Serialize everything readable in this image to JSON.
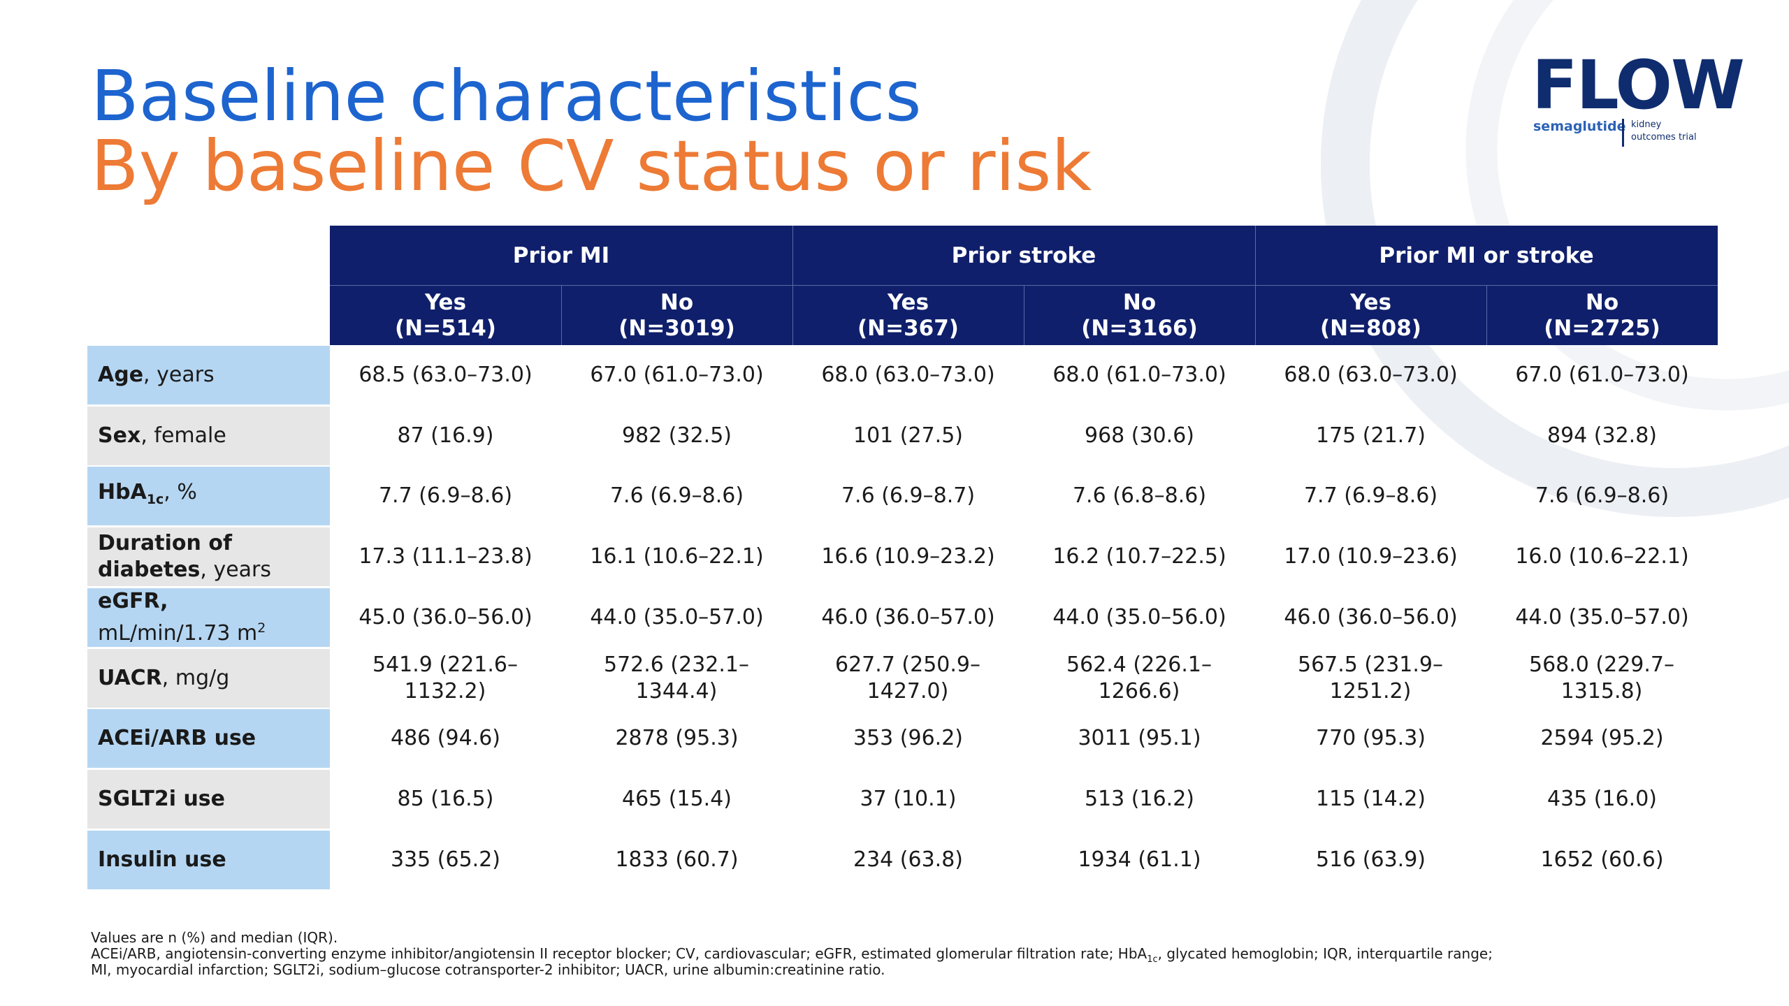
{
  "title": {
    "line1": "Baseline characteristics",
    "line2": "By baseline CV status or risk"
  },
  "logo": {
    "word": "FLOW",
    "sub": "semaglutide",
    "sub2_line1": "kidney",
    "sub2_line2": "outcomes trial"
  },
  "colors": {
    "title_blue": "#1d64cf",
    "title_orange": "#ed7a35",
    "header_navy": "#0f1f6b",
    "label_blue": "#b5d6f2",
    "label_grey": "#e6e6e6",
    "logo_navy": "#0f2d6e"
  },
  "table": {
    "groups": [
      "Prior MI",
      "Prior stroke",
      "Prior MI or stroke"
    ],
    "columns": [
      {
        "label": "Yes",
        "n": "(N=514)"
      },
      {
        "label": "No",
        "n": "(N=3019)"
      },
      {
        "label": "Yes",
        "n": "(N=367)"
      },
      {
        "label": "No",
        "n": "(N=3166)"
      },
      {
        "label": "Yes",
        "n": "(N=808)"
      },
      {
        "label": "No",
        "n": "(N=2725)"
      }
    ],
    "rows": [
      {
        "label_bold": "Age",
        "label_rest": ", years",
        "cells": [
          "68.5 (63.0–73.0)",
          "67.0 (61.0–73.0)",
          "68.0 (63.0–73.0)",
          "68.0 (61.0–73.0)",
          "68.0 (63.0–73.0)",
          "67.0 (61.0–73.0)"
        ]
      },
      {
        "label_bold": "Sex",
        "label_rest": ", female",
        "cells": [
          "87 (16.9)",
          "982 (32.5)",
          "101 (27.5)",
          "968 (30.6)",
          "175 (21.7)",
          "894 (32.8)"
        ]
      },
      {
        "label_bold": "HbA",
        "label_sub": "1c",
        "label_rest": ", %",
        "cells": [
          "7.7 (6.9–8.6)",
          "7.6 (6.9–8.6)",
          "7.6 (6.9–8.7)",
          "7.6 (6.8–8.6)",
          "7.7 (6.9–8.6)",
          "7.6 (6.9–8.6)"
        ]
      },
      {
        "label_bold": "Duration of diabetes",
        "label_rest": ", years",
        "cells": [
          "17.3 (11.1–23.8)",
          "16.1 (10.6–22.1)",
          "16.6 (10.9–23.2)",
          "16.2 (10.7–22.5)",
          "17.0 (10.9–23.6)",
          "16.0 (10.6–22.1)"
        ]
      },
      {
        "label_bold": "eGFR,",
        "label_rest": "mL/min/1.73 m",
        "label_sup": "2",
        "cells": [
          "45.0 (36.0–56.0)",
          "44.0 (35.0–57.0)",
          "46.0 (36.0–57.0)",
          "44.0 (35.0–56.0)",
          "46.0 (36.0–56.0)",
          "44.0 (35.0–57.0)"
        ]
      },
      {
        "label_bold": "UACR",
        "label_rest": ", mg/g",
        "cells": [
          "541.9 (221.6–1132.2)",
          "572.6 (232.1–1344.4)",
          "627.7 (250.9–1427.0)",
          "562.4 (226.1–1266.6)",
          "567.5 (231.9–1251.2)",
          "568.0 (229.7–1315.8)"
        ]
      },
      {
        "label_bold": "ACEi/ARB use",
        "label_rest": "",
        "cells": [
          "486 (94.6)",
          "2878 (95.3)",
          "353 (96.2)",
          "3011 (95.1)",
          "770 (95.3)",
          "2594 (95.2)"
        ]
      },
      {
        "label_bold": "SGLT2i use",
        "label_rest": "",
        "cells": [
          "85 (16.5)",
          "465 (15.4)",
          "37 (10.1)",
          "513 (16.2)",
          "115 (14.2)",
          "435 (16.0)"
        ]
      },
      {
        "label_bold": "Insulin use",
        "label_rest": "",
        "cells": [
          "335 (65.2)",
          "1833 (60.7)",
          "234 (63.8)",
          "1934 (61.1)",
          "516 (63.9)",
          "1652 (60.6)"
        ]
      }
    ]
  },
  "footnote": {
    "line1": "Values are n (%) and median (IQR).",
    "line2_a": "ACEi/ARB, angiotensin-converting enzyme inhibitor/angiotensin II receptor blocker; CV, cardiovascular; eGFR, estimated glomerular filtration rate; HbA",
    "line2_sub": "1c",
    "line2_b": ", glycated hemoglobin; IQR, interquartile range;",
    "line3": "MI, myocardial infarction; SGLT2i, sodium–glucose cotransporter-2 inhibitor; UACR, urine albumin:creatinine ratio."
  }
}
